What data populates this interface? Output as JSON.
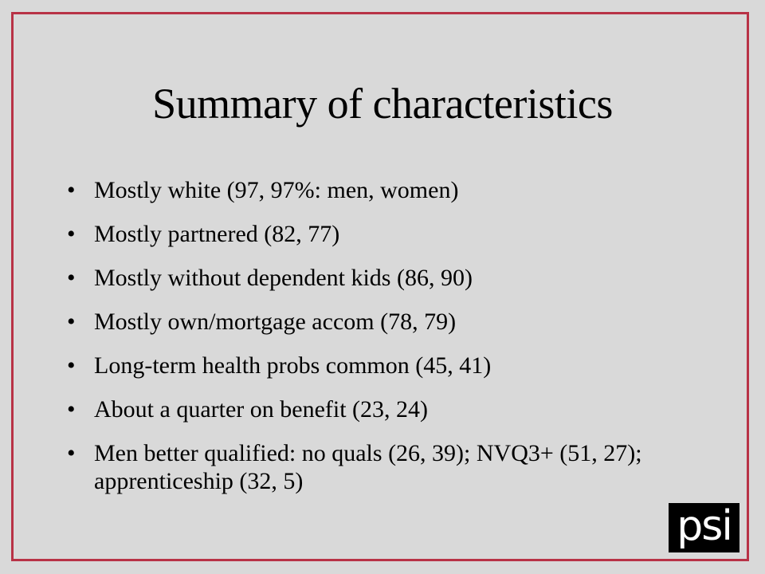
{
  "slide": {
    "title": "Summary of characteristics",
    "bullet_glyph": "•",
    "bullets": [
      "Mostly white (97, 97%: men, women)",
      "Mostly partnered (82, 77)",
      "Mostly without dependent kids (86, 90)",
      "Mostly own/mortgage accom (78, 79)",
      "Long-term health probs common (45, 41)",
      "About a quarter on benefit (23, 24)",
      "Men better qualified: no quals (26, 39); NVQ3+ (51, 27); apprenticeship (32, 5)"
    ],
    "logo_text": "psi"
  },
  "colors": {
    "background": "#d9d9d9",
    "border": "#b83246",
    "text": "#000000",
    "logo_bg": "#000000",
    "logo_text": "#ffffff"
  }
}
